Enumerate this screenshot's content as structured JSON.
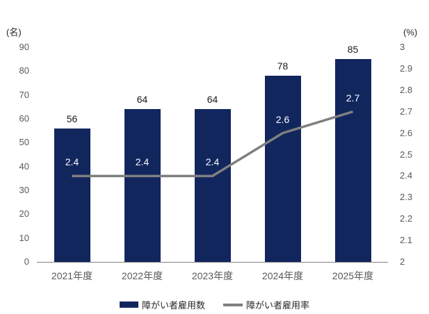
{
  "chart_data": {
    "type": "bar",
    "subtype": "bar-line-combo",
    "categories": [
      "2021年度",
      "2022年度",
      "2023年度",
      "2024年度",
      "2025年度"
    ],
    "series": [
      {
        "name": "障がい者雇用数",
        "chart_type": "bar",
        "axis": "left",
        "values": [
          56,
          64,
          64,
          78,
          85
        ],
        "value_labels": [
          "56",
          "64",
          "64",
          "78",
          "85"
        ],
        "color": "#12265E"
      },
      {
        "name": "障がい者雇用率",
        "chart_type": "line",
        "axis": "right",
        "values": [
          2.4,
          2.4,
          2.4,
          2.6,
          2.7
        ],
        "value_labels": [
          "2.4",
          "2.4",
          "2.4",
          "2.6",
          "2.7"
        ],
        "color": "#7F7F7F"
      }
    ],
    "left_axis": {
      "unit": "(名)",
      "min": 0,
      "max": 90,
      "ticks": [
        "0",
        "10",
        "20",
        "30",
        "40",
        "50",
        "60",
        "70",
        "80",
        "90"
      ]
    },
    "right_axis": {
      "unit": "(%)",
      "min": 2,
      "max": 3,
      "ticks": [
        "2",
        "2.1",
        "2.2",
        "2.3",
        "2.4",
        "2.5",
        "2.6",
        "2.7",
        "2.8",
        "2.9",
        "3"
      ]
    },
    "title": "",
    "legend_position": "bottom",
    "grid": false
  },
  "colors": {
    "background": "#FFFFFF",
    "bar": "#12265E",
    "line": "#7F7F7F",
    "axis_line": "#808080",
    "tick_text": "#595959",
    "bar_value_label": "#1A1A1A",
    "line_value_label": "#FFFFFF",
    "unit_text": "#262626",
    "legend_text": "#262626"
  }
}
